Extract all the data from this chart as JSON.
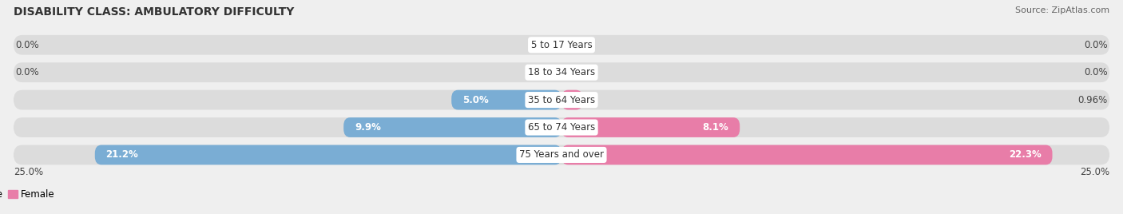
{
  "title": "DISABILITY CLASS: AMBULATORY DIFFICULTY",
  "source": "Source: ZipAtlas.com",
  "categories": [
    "5 to 17 Years",
    "18 to 34 Years",
    "35 to 64 Years",
    "65 to 74 Years",
    "75 Years and over"
  ],
  "male_values": [
    0.0,
    0.0,
    5.0,
    9.9,
    21.2
  ],
  "female_values": [
    0.0,
    0.0,
    0.96,
    8.1,
    22.3
  ],
  "male_labels": [
    "0.0%",
    "0.0%",
    "5.0%",
    "9.9%",
    "21.2%"
  ],
  "female_labels": [
    "0.0%",
    "0.0%",
    "0.96%",
    "8.1%",
    "22.3%"
  ],
  "male_color": "#7aadd4",
  "female_color": "#e87da8",
  "axis_max": 25.0,
  "axis_label_left": "25.0%",
  "axis_label_right": "25.0%",
  "background_color": "#efefef",
  "bar_bg_color": "#dcdcdc",
  "title_fontsize": 10,
  "source_fontsize": 8,
  "label_fontsize": 8.5,
  "cat_fontsize": 8.5
}
